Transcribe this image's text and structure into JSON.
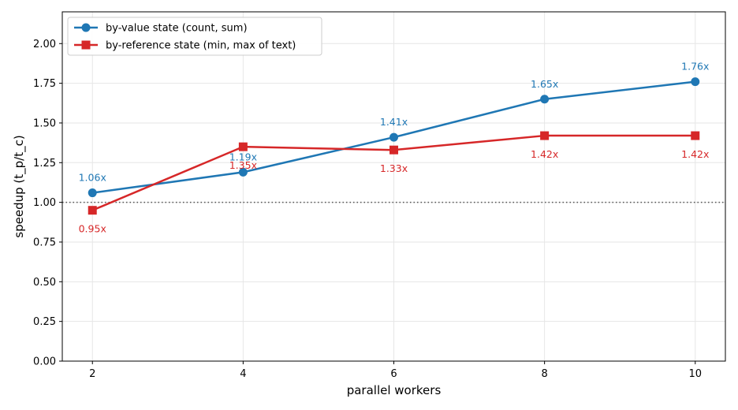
{
  "chart_data": {
    "type": "line",
    "xlabel": "parallel workers",
    "ylabel": "speedup (t_p/t_c)",
    "x": [
      2,
      4,
      6,
      8,
      10
    ],
    "xticks": [
      "2",
      "4",
      "6",
      "8",
      "10"
    ],
    "xlim": [
      1.6,
      10.4
    ],
    "ylim": [
      0,
      2.2
    ],
    "yticks": [
      "0.00",
      "0.25",
      "0.50",
      "0.75",
      "1.00",
      "1.25",
      "1.50",
      "1.75",
      "2.00"
    ],
    "grid": true,
    "legend_position": "top-left",
    "reference_line": 1.0,
    "series": [
      {
        "name": "by-value state (count, sum)",
        "values": [
          1.06,
          1.19,
          1.41,
          1.65,
          1.76
        ],
        "labels": [
          "1.06x",
          "1.19x",
          "1.41x",
          "1.65x",
          "1.76x"
        ],
        "color": "#1f77b4",
        "marker": "circle"
      },
      {
        "name": "by-reference state (min, max of text)",
        "values": [
          0.95,
          1.35,
          1.33,
          1.42,
          1.42
        ],
        "labels": [
          "0.95x",
          "1.35x",
          "1.33x",
          "1.42x",
          "1.42x"
        ],
        "color": "#d62728",
        "marker": "square"
      }
    ]
  }
}
